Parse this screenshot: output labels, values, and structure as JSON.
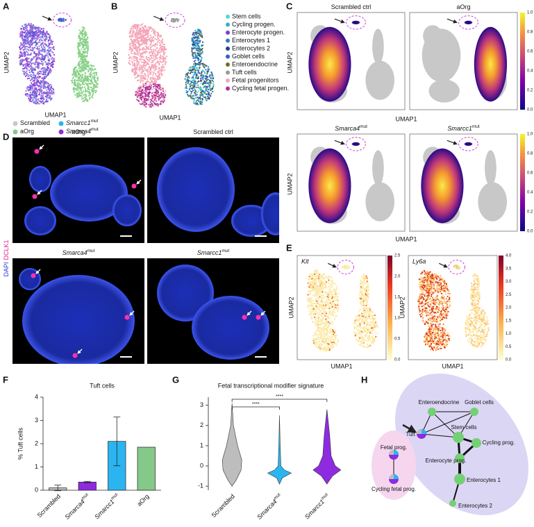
{
  "panels": {
    "A": {
      "label": "A",
      "x_axis": "UMAP1",
      "y_axis": "UMAP2",
      "legend": [
        {
          "name": "Scrambled"
        },
        {
          "name": "Smarcc1",
          "sup": "mut"
        },
        {
          "name": "aOrg"
        },
        {
          "name": "Smarca4",
          "sup": "mut"
        }
      ]
    },
    "B": {
      "label": "B",
      "x_axis": "UMAP1",
      "y_axis": "UMAP2",
      "legend": [
        "Stem cells",
        "Cycling progen.",
        "Enterocyte progen.",
        "Enterocytes 1",
        "Enterocytes 2",
        "Goblet cells",
        "Enteroendocrine",
        "Tuft cells",
        "Fetal progenitors",
        "Cycling fetal progen."
      ]
    },
    "C": {
      "label": "C",
      "x_axis": "UMAP1",
      "y_axis": "UMAP2",
      "plots": [
        {
          "title": "Scrambled ctrl"
        },
        {
          "title": "aOrg"
        },
        {
          "title": "Smarca4",
          "sup": "mut"
        },
        {
          "title": "Smarcc1",
          "sup": "mut"
        }
      ],
      "colorbar_ticks": [
        "0.0",
        "0.2",
        "0.4",
        "0.6",
        "0.8",
        "1.0"
      ]
    },
    "D": {
      "label": "D",
      "channels": [
        "DAPI",
        "DCLK1"
      ],
      "images": [
        {
          "title": "aOrg"
        },
        {
          "title": "Scrambled ctrl"
        },
        {
          "title": "Smarca4",
          "sup": "mut"
        },
        {
          "title": "Smarcc1",
          "sup": "mut"
        }
      ]
    },
    "E": {
      "label": "E",
      "x_axis": "UMAP1",
      "y_axis": "UMAP2",
      "plots": [
        {
          "gene": "Kit",
          "colorbar_ticks": [
            "0.0",
            "0.5",
            "1.0",
            "1.5",
            "2.0",
            "2.5"
          ]
        },
        {
          "gene": "Ly6a",
          "colorbar_ticks": [
            "0.0",
            "0.5",
            "1.0",
            "1.5",
            "2.0",
            "2.5",
            "3.0",
            "3.5",
            "4.0"
          ]
        }
      ]
    },
    "H": {
      "label": "H",
      "nodes": [
        "Enteroendocrine",
        "Goblet cells",
        "Tuft",
        "Stem cells",
        "Cycling prog.",
        "Enterocyte prog.",
        "Enterocytes 1",
        "Enterocytes 2",
        "Fetal prog.",
        "Cycling fetal prog."
      ]
    }
  },
  "chart_data": [
    {
      "type": "bar",
      "label": "F",
      "title": "Tuft cells",
      "y_label": "% Tuft cells",
      "categories": [
        "Scrambled",
        "Smarca4",
        "Smarcc1",
        "aOrg"
      ],
      "category_superscripts": [
        null,
        "mut",
        "mut",
        null
      ],
      "values": [
        0.1,
        0.35,
        2.1,
        1.85
      ],
      "errors": [
        0.12,
        0.03,
        1.05,
        null
      ],
      "colors": [
        "#bdbdbd",
        "#8e2be0",
        "#2bb5f0",
        "#84c98a"
      ],
      "ylim": [
        0,
        4
      ],
      "yticks": [
        0,
        1,
        2,
        3,
        4
      ]
    },
    {
      "type": "violin",
      "label": "G",
      "title": "Fetal transcriptional modifier signature",
      "categories": [
        "Scrambled",
        "Smarca4",
        "Smarcc1"
      ],
      "category_superscripts": [
        null,
        "mut",
        "mut"
      ],
      "colors": [
        "#bdbdbd",
        "#2bb5f0",
        "#8e2be0"
      ],
      "significance": [
        "****",
        "****"
      ],
      "ylim": [
        -1.2,
        3.4
      ],
      "yticks": [
        -1,
        0,
        1,
        2,
        3
      ]
    }
  ]
}
